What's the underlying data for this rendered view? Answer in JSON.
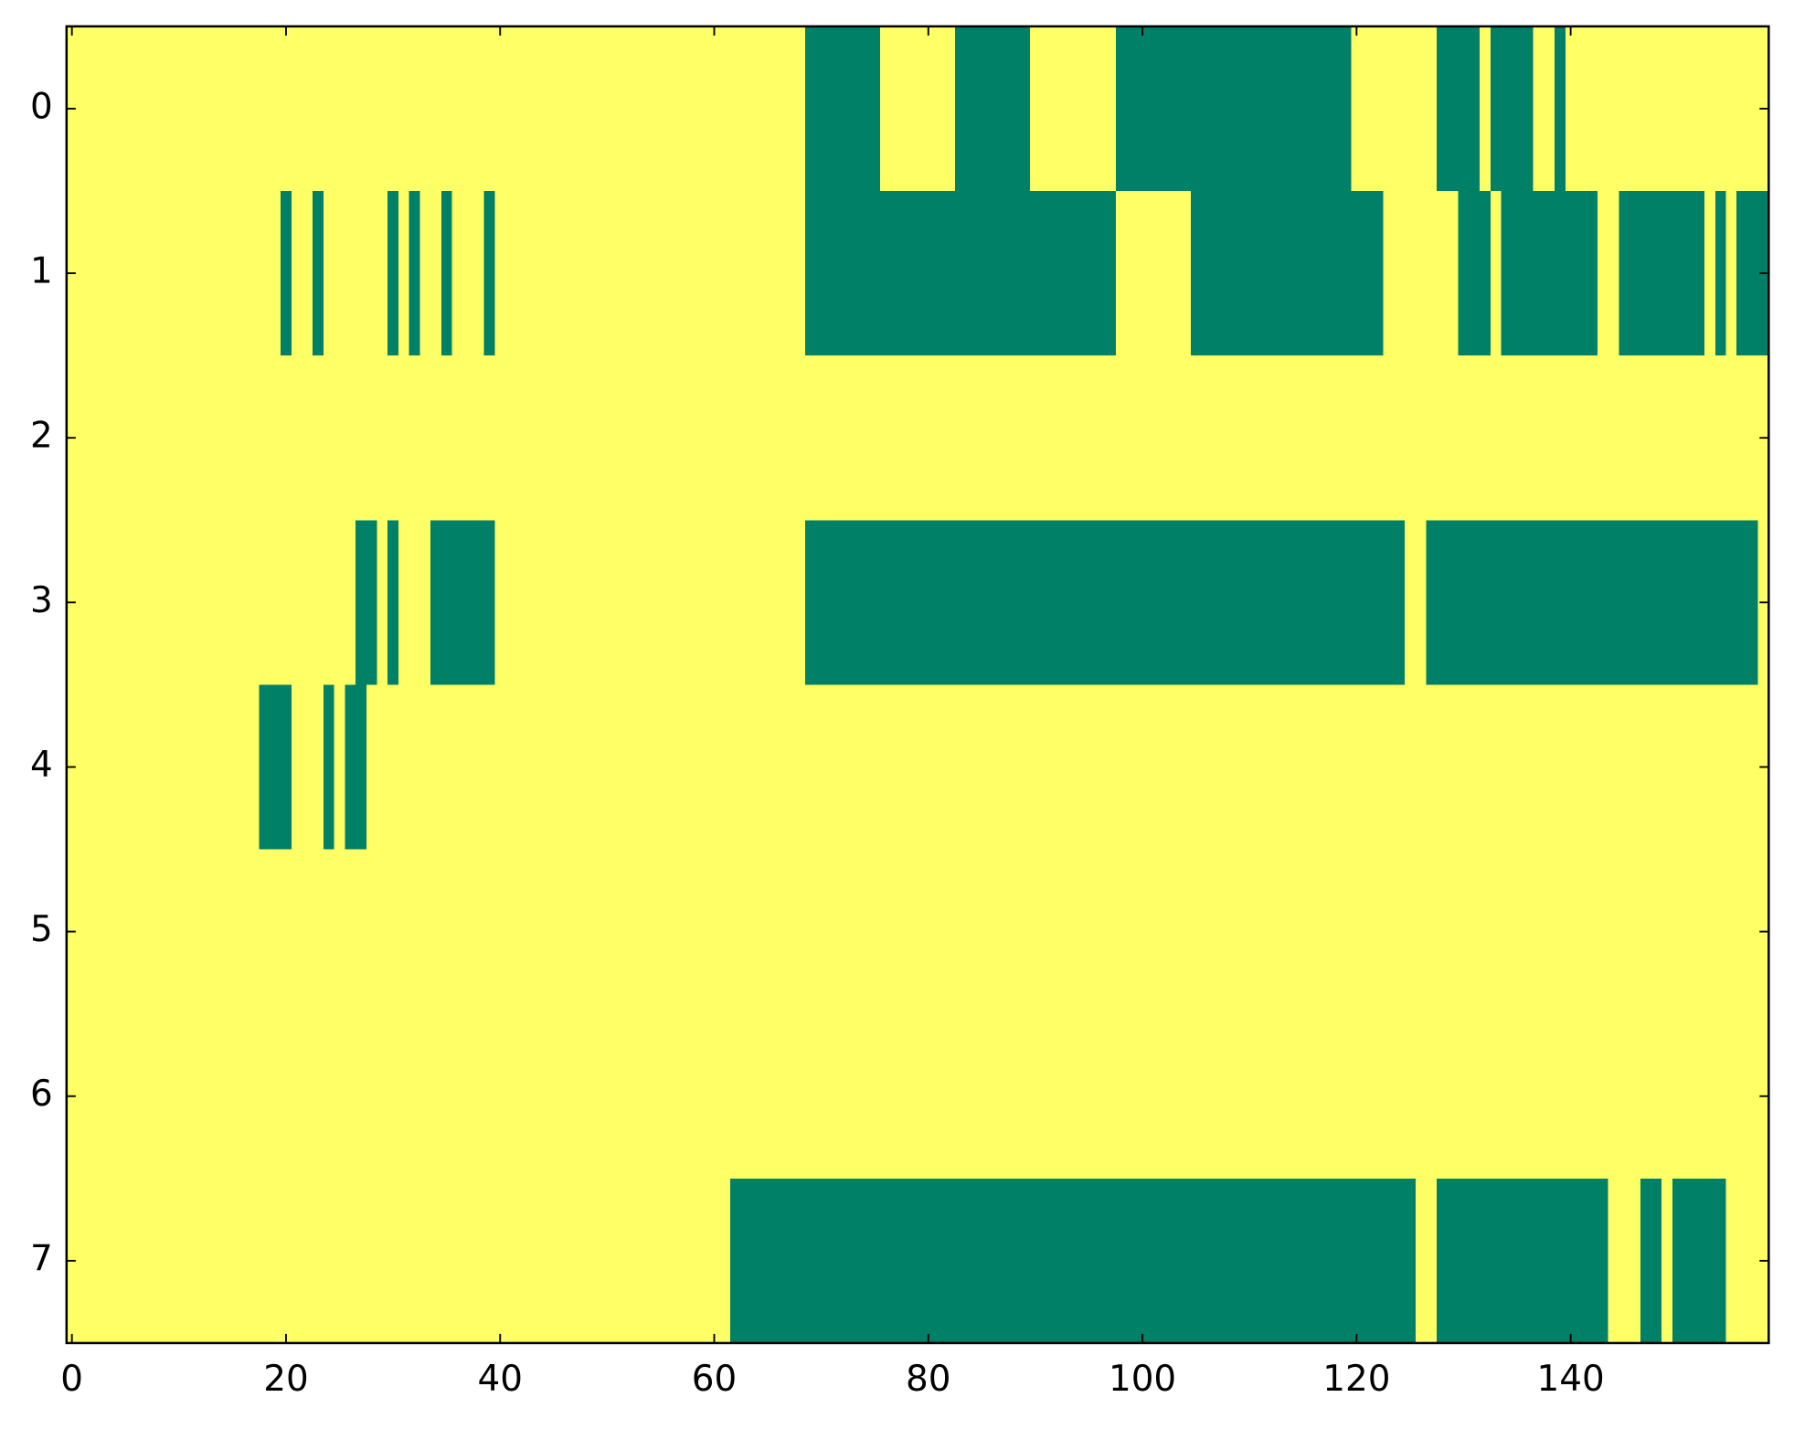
{
  "chart_data": {
    "type": "heatmap",
    "colors": [
      "#008066",
      "#ffff66"
    ],
    "xlim": [
      -0.5,
      158.5
    ],
    "ylim": [
      7.5,
      -0.5
    ],
    "xticks": [
      0,
      20,
      40,
      60,
      80,
      100,
      120,
      140
    ],
    "yticks": [
      0,
      1,
      2,
      3,
      4,
      5,
      6,
      7
    ],
    "z": [
      [
        1,
        1,
        1,
        1,
        1,
        1,
        1,
        1,
        1,
        1,
        1,
        1,
        1,
        1,
        1,
        1,
        1,
        1,
        1,
        1,
        1,
        1,
        1,
        1,
        1,
        1,
        1,
        1,
        1,
        1,
        1,
        1,
        1,
        1,
        1,
        1,
        1,
        1,
        1,
        1,
        1,
        1,
        1,
        1,
        1,
        1,
        1,
        1,
        1,
        1,
        1,
        1,
        1,
        1,
        1,
        1,
        1,
        1,
        1,
        1,
        1,
        1,
        1,
        1,
        1,
        1,
        1,
        1,
        1,
        0,
        0,
        0,
        0,
        0,
        0,
        0,
        1,
        1,
        1,
        1,
        1,
        1,
        1,
        0,
        0,
        0,
        0,
        0,
        0,
        0,
        1,
        1,
        1,
        1,
        1,
        1,
        1,
        1,
        0,
        0,
        0,
        0,
        0,
        0,
        0,
        0,
        0,
        0,
        0,
        0,
        0,
        0,
        0,
        0,
        0,
        0,
        0,
        0,
        0,
        0,
        1,
        1,
        1,
        1,
        1,
        1,
        1,
        1,
        0,
        0,
        0,
        0,
        1,
        0,
        0,
        0,
        0,
        1,
        1,
        0,
        1,
        1,
        1,
        1,
        1,
        1,
        1,
        1,
        1,
        1,
        1,
        1,
        1,
        1,
        1,
        1,
        1,
        1,
        1
      ],
      [
        1,
        1,
        1,
        1,
        1,
        1,
        1,
        1,
        1,
        1,
        1,
        1,
        1,
        1,
        1,
        1,
        1,
        1,
        1,
        1,
        0,
        1,
        1,
        0,
        1,
        1,
        1,
        1,
        1,
        1,
        0,
        1,
        0,
        1,
        1,
        0,
        1,
        1,
        1,
        0,
        1,
        1,
        1,
        1,
        1,
        1,
        1,
        1,
        1,
        1,
        1,
        1,
        1,
        1,
        1,
        1,
        1,
        1,
        1,
        1,
        1,
        1,
        1,
        1,
        1,
        1,
        1,
        1,
        1,
        0,
        0,
        0,
        0,
        0,
        0,
        0,
        0,
        0,
        0,
        0,
        0,
        0,
        0,
        0,
        0,
        0,
        0,
        0,
        0,
        0,
        0,
        0,
        0,
        0,
        0,
        0,
        0,
        0,
        1,
        1,
        1,
        1,
        1,
        1,
        1,
        0,
        0,
        0,
        0,
        0,
        0,
        0,
        0,
        0,
        0,
        0,
        0,
        0,
        0,
        0,
        0,
        0,
        0,
        1,
        1,
        1,
        1,
        1,
        1,
        1,
        0,
        0,
        0,
        1,
        0,
        0,
        0,
        0,
        0,
        0,
        0,
        0,
        0,
        1,
        1,
        0,
        0,
        0,
        0,
        0,
        0,
        0,
        0,
        1,
        0,
        1,
        0,
        0,
        0
      ],
      [
        1,
        1,
        1,
        1,
        1,
        1,
        1,
        1,
        1,
        1,
        1,
        1,
        1,
        1,
        1,
        1,
        1,
        1,
        1,
        1,
        1,
        1,
        1,
        1,
        1,
        1,
        1,
        1,
        1,
        1,
        1,
        1,
        1,
        1,
        1,
        1,
        1,
        1,
        1,
        1,
        1,
        1,
        1,
        1,
        1,
        1,
        1,
        1,
        1,
        1,
        1,
        1,
        1,
        1,
        1,
        1,
        1,
        1,
        1,
        1,
        1,
        1,
        1,
        1,
        1,
        1,
        1,
        1,
        1,
        1,
        1,
        1,
        1,
        1,
        1,
        1,
        1,
        1,
        1,
        1,
        1,
        1,
        1,
        1,
        1,
        1,
        1,
        1,
        1,
        1,
        1,
        1,
        1,
        1,
        1,
        1,
        1,
        1,
        1,
        1,
        1,
        1,
        1,
        1,
        1,
        1,
        1,
        1,
        1,
        1,
        1,
        1,
        1,
        1,
        1,
        1,
        1,
        1,
        1,
        1,
        1,
        1,
        1,
        1,
        1,
        1,
        1,
        1,
        1,
        1,
        1,
        1,
        1,
        1,
        1,
        1,
        1,
        1,
        1,
        1,
        1,
        1,
        1,
        1,
        1,
        1,
        1,
        1,
        1,
        1,
        1,
        1,
        1,
        1,
        1,
        1,
        1,
        1,
        1
      ],
      [
        1,
        1,
        1,
        1,
        1,
        1,
        1,
        1,
        1,
        1,
        1,
        1,
        1,
        1,
        1,
        1,
        1,
        1,
        1,
        1,
        1,
        1,
        1,
        1,
        1,
        1,
        1,
        0,
        0,
        1,
        0,
        1,
        1,
        1,
        0,
        0,
        0,
        0,
        0,
        0,
        1,
        1,
        1,
        1,
        1,
        1,
        1,
        1,
        1,
        1,
        1,
        1,
        1,
        1,
        1,
        1,
        1,
        1,
        1,
        1,
        1,
        1,
        1,
        1,
        1,
        1,
        1,
        1,
        1,
        0,
        0,
        0,
        0,
        0,
        0,
        0,
        0,
        0,
        0,
        0,
        0,
        0,
        0,
        0,
        0,
        0,
        0,
        0,
        0,
        0,
        0,
        0,
        0,
        0,
        0,
        0,
        0,
        0,
        0,
        0,
        0,
        0,
        0,
        0,
        0,
        0,
        0,
        0,
        0,
        0,
        0,
        0,
        0,
        0,
        0,
        0,
        0,
        0,
        0,
        0,
        0,
        0,
        0,
        0,
        0,
        1,
        1,
        0,
        0,
        0,
        0,
        0,
        0,
        0,
        0,
        0,
        0,
        0,
        0,
        0,
        0,
        0,
        0,
        0,
        0,
        0,
        0,
        0,
        0,
        0,
        0,
        0,
        0,
        0,
        0,
        0,
        0,
        0,
        1
      ],
      [
        1,
        1,
        1,
        1,
        1,
        1,
        1,
        1,
        1,
        1,
        1,
        1,
        1,
        1,
        1,
        1,
        1,
        1,
        0,
        0,
        0,
        1,
        1,
        1,
        0,
        1,
        0,
        0,
        1,
        1,
        1,
        1,
        1,
        1,
        1,
        1,
        1,
        1,
        1,
        1,
        1,
        1,
        1,
        1,
        1,
        1,
        1,
        1,
        1,
        1,
        1,
        1,
        1,
        1,
        1,
        1,
        1,
        1,
        1,
        1,
        1,
        1,
        1,
        1,
        1,
        1,
        1,
        1,
        1,
        1,
        1,
        1,
        1,
        1,
        1,
        1,
        1,
        1,
        1,
        1,
        1,
        1,
        1,
        1,
        1,
        1,
        1,
        1,
        1,
        1,
        1,
        1,
        1,
        1,
        1,
        1,
        1,
        1,
        1,
        1,
        1,
        1,
        1,
        1,
        1,
        1,
        1,
        1,
        1,
        1,
        1,
        1,
        1,
        1,
        1,
        1,
        1,
        1,
        1,
        1,
        1,
        1,
        1,
        1,
        1,
        1,
        1,
        1,
        1,
        1,
        1,
        1,
        1,
        1,
        1,
        1,
        1,
        1,
        1,
        1,
        1,
        1,
        1,
        1,
        1,
        1,
        1,
        1,
        1,
        1,
        1,
        1,
        1,
        1,
        1,
        1,
        1,
        1,
        1
      ],
      [
        1,
        1,
        1,
        1,
        1,
        1,
        1,
        1,
        1,
        1,
        1,
        1,
        1,
        1,
        1,
        1,
        1,
        1,
        1,
        1,
        1,
        1,
        1,
        1,
        1,
        1,
        1,
        1,
        1,
        1,
        1,
        1,
        1,
        1,
        1,
        1,
        1,
        1,
        1,
        1,
        1,
        1,
        1,
        1,
        1,
        1,
        1,
        1,
        1,
        1,
        1,
        1,
        1,
        1,
        1,
        1,
        1,
        1,
        1,
        1,
        1,
        1,
        1,
        1,
        1,
        1,
        1,
        1,
        1,
        1,
        1,
        1,
        1,
        1,
        1,
        1,
        1,
        1,
        1,
        1,
        1,
        1,
        1,
        1,
        1,
        1,
        1,
        1,
        1,
        1,
        1,
        1,
        1,
        1,
        1,
        1,
        1,
        1,
        1,
        1,
        1,
        1,
        1,
        1,
        1,
        1,
        1,
        1,
        1,
        1,
        1,
        1,
        1,
        1,
        1,
        1,
        1,
        1,
        1,
        1,
        1,
        1,
        1,
        1,
        1,
        1,
        1,
        1,
        1,
        1,
        1,
        1,
        1,
        1,
        1,
        1,
        1,
        1,
        1,
        1,
        1,
        1,
        1,
        1,
        1,
        1,
        1,
        1,
        1,
        1,
        1,
        1,
        1,
        1,
        1,
        1,
        1,
        1,
        1
      ],
      [
        1,
        1,
        1,
        1,
        1,
        1,
        1,
        1,
        1,
        1,
        1,
        1,
        1,
        1,
        1,
        1,
        1,
        1,
        1,
        1,
        1,
        1,
        1,
        1,
        1,
        1,
        1,
        1,
        1,
        1,
        1,
        1,
        1,
        1,
        1,
        1,
        1,
        1,
        1,
        1,
        1,
        1,
        1,
        1,
        1,
        1,
        1,
        1,
        1,
        1,
        1,
        1,
        1,
        1,
        1,
        1,
        1,
        1,
        1,
        1,
        1,
        1,
        1,
        1,
        1,
        1,
        1,
        1,
        1,
        1,
        1,
        1,
        1,
        1,
        1,
        1,
        1,
        1,
        1,
        1,
        1,
        1,
        1,
        1,
        1,
        1,
        1,
        1,
        1,
        1,
        1,
        1,
        1,
        1,
        1,
        1,
        1,
        1,
        1,
        1,
        1,
        1,
        1,
        1,
        1,
        1,
        1,
        1,
        1,
        1,
        1,
        1,
        1,
        1,
        1,
        1,
        1,
        1,
        1,
        1,
        1,
        1,
        1,
        1,
        1,
        1,
        1,
        1,
        1,
        1,
        1,
        1,
        1,
        1,
        1,
        1,
        1,
        1,
        1,
        1,
        1,
        1,
        1,
        1,
        1,
        1,
        1,
        1,
        1,
        1,
        1,
        1,
        1,
        1,
        1,
        1,
        1,
        1,
        1
      ],
      [
        1,
        1,
        1,
        1,
        1,
        1,
        1,
        1,
        1,
        1,
        1,
        1,
        1,
        1,
        1,
        1,
        1,
        1,
        1,
        1,
        1,
        1,
        1,
        1,
        1,
        1,
        1,
        1,
        1,
        1,
        1,
        1,
        1,
        1,
        1,
        1,
        1,
        1,
        1,
        1,
        1,
        1,
        1,
        1,
        1,
        1,
        1,
        1,
        1,
        1,
        1,
        1,
        1,
        1,
        1,
        1,
        1,
        1,
        1,
        1,
        1,
        1,
        0,
        0,
        0,
        0,
        0,
        0,
        0,
        0,
        0,
        0,
        0,
        0,
        0,
        0,
        0,
        0,
        0,
        0,
        0,
        0,
        0,
        0,
        0,
        0,
        0,
        0,
        0,
        0,
        0,
        0,
        0,
        0,
        0,
        0,
        0,
        0,
        0,
        0,
        0,
        0,
        0,
        0,
        0,
        0,
        0,
        0,
        0,
        0,
        0,
        0,
        0,
        0,
        0,
        0,
        0,
        0,
        0,
        0,
        0,
        0,
        0,
        0,
        0,
        0,
        1,
        1,
        0,
        0,
        0,
        0,
        0,
        0,
        0,
        0,
        0,
        0,
        0,
        0,
        0,
        0,
        0,
        0,
        1,
        1,
        1,
        0,
        0,
        1,
        0,
        0,
        0,
        0,
        0,
        1,
        1,
        1,
        1
      ]
    ]
  }
}
